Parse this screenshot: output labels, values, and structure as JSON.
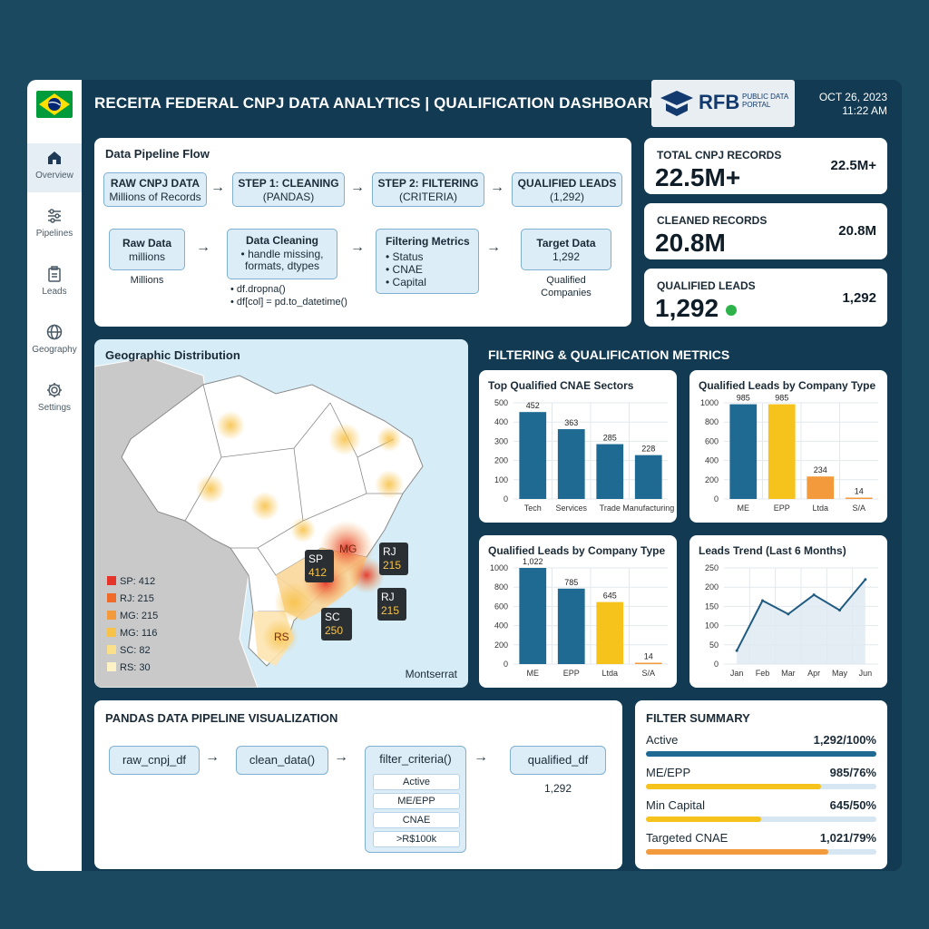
{
  "app": {
    "title": "RECEITA FEDERAL CNPJ DATA ANALYTICS | QUALIFICATION DASHBOARD",
    "logo_text": "RFB",
    "logo_sub": "PUBLIC DATA PORTAL",
    "date": "OCT 26, 2023",
    "time": "11:22 AM"
  },
  "sidebar": {
    "items": [
      {
        "label": "Overview",
        "icon": "home-icon"
      },
      {
        "label": "Pipelines",
        "icon": "sliders-icon"
      },
      {
        "label": "Leads",
        "icon": "clipboard-icon"
      },
      {
        "label": "Geography",
        "icon": "globe-icon"
      },
      {
        "label": "Settings",
        "icon": "gear-icon"
      }
    ]
  },
  "pipeline": {
    "title": "Data Pipeline Flow",
    "row1": [
      {
        "title": "RAW CNPJ DATA",
        "sub": "Millions of Records"
      },
      {
        "title": "STEP 1: CLEANING",
        "sub": "(PANDAS)"
      },
      {
        "title": "STEP 2: FILTERING",
        "sub": "(CRITERIA)"
      },
      {
        "title": "QUALIFIED LEADS",
        "sub": "(1,292)"
      }
    ],
    "raw": {
      "title": "Raw Data",
      "sub": "millions",
      "below": "Millions"
    },
    "cleaning": {
      "title": "Data Cleaning",
      "bullets": [
        "• handle missing,",
        "formats, dtypes"
      ],
      "code1": "• df.dropna()",
      "code2": "• df[col] = pd.to_datetime()"
    },
    "filtering": {
      "title": "Filtering Metrics",
      "bullets": [
        "• Status",
        "• CNAE",
        "• Capital"
      ]
    },
    "target": {
      "title": "Target Data",
      "sub": "1,292",
      "below1": "Qualified",
      "below2": "Companies"
    }
  },
  "stats": [
    {
      "label": "TOTAL CNPJ RECORDS",
      "value": "22.5M+",
      "side": "22.5M+"
    },
    {
      "label": "CLEANED RECORDS",
      "value": "20.8M",
      "side": "20.8M"
    },
    {
      "label": "QUALIFIED LEADS",
      "value": "1,292",
      "side": "1,292"
    }
  ],
  "geo": {
    "title": "Geographic Distribution",
    "legend": [
      {
        "text": "SP: 412",
        "color": "#e5342a"
      },
      {
        "text": "RJ: 215",
        "color": "#f06a2a"
      },
      {
        "text": "MG: 215",
        "color": "#f39a3a"
      },
      {
        "text": "MG: 116",
        "color": "#f7c24a"
      },
      {
        "text": "SC: 82",
        "color": "#fbe08a"
      },
      {
        "text": "RS: 30",
        "color": "#fdf2c6"
      }
    ],
    "markers": [
      {
        "state": "SP",
        "value": "412"
      },
      {
        "state": "RJ",
        "value": "215"
      },
      {
        "state": "RJ",
        "value": "215"
      },
      {
        "state": "SC",
        "value": "250"
      }
    ],
    "state_labels": [
      "MG",
      "RS"
    ],
    "footer": "Montserrat"
  },
  "metrics_label": "FILTERING & QUALIFICATION METRICS",
  "chart_data": [
    {
      "type": "bar",
      "title": "Top Qualified CNAE Sectors",
      "categories": [
        "Tech",
        "Services",
        "Trade",
        "Manufacturing"
      ],
      "values": [
        452,
        363,
        285,
        228
      ],
      "ylim": [
        0,
        500
      ],
      "yticks": [
        0,
        100,
        200,
        300,
        400,
        500
      ],
      "colors": [
        "#1f6a93",
        "#1f6a93",
        "#1f6a93",
        "#1f6a93"
      ]
    },
    {
      "type": "bar",
      "title": "Qualified Leads by Company Type",
      "categories": [
        "ME",
        "EPP",
        "Ltda",
        "S/A"
      ],
      "values": [
        985,
        985,
        234,
        14
      ],
      "ylim": [
        0,
        1000
      ],
      "yticks": [
        0,
        200,
        400,
        600,
        800,
        1000
      ],
      "colors": [
        "#1f6a93",
        "#f6c21c",
        "#f29a3c",
        "#f29a3c"
      ]
    },
    {
      "type": "bar",
      "title": "Qualified Leads by Company Type",
      "categories": [
        "ME",
        "EPP",
        "Ltda",
        "S/A"
      ],
      "values": [
        1022,
        785,
        645,
        14
      ],
      "ylim": [
        0,
        1000
      ],
      "yticks": [
        0,
        200,
        400,
        600,
        800,
        1000
      ],
      "colors": [
        "#1f6a93",
        "#1f6a93",
        "#f6c21c",
        "#f29a3c"
      ]
    },
    {
      "type": "line",
      "title": "Leads Trend (Last 6 Months)",
      "categories": [
        "Jan",
        "Feb",
        "Mar",
        "Apr",
        "May",
        "Jun"
      ],
      "values": [
        35,
        165,
        130,
        180,
        140,
        220
      ],
      "ylim": [
        0,
        250
      ],
      "yticks": [
        0,
        50,
        100,
        150,
        200,
        250
      ],
      "colors": [
        "#1f5a80"
      ]
    }
  ],
  "pandas": {
    "title": "PANDAS DATA PIPELINE VISUALIZATION",
    "nodes": [
      "raw_cnpj_df",
      "clean_data()",
      "filter_criteria()",
      "qualified_df"
    ],
    "filters": [
      "Active",
      "ME/EPP",
      "CNAE",
      ">R$100k"
    ],
    "qualified_count": "1,292"
  },
  "filter_summary": {
    "title": "FILTER SUMMARY",
    "rows": [
      {
        "name": "Active",
        "value": "1,292/100%",
        "pct": 100,
        "color": "#1f6a93"
      },
      {
        "name": "ME/EPP",
        "value": "985/76%",
        "pct": 76,
        "color": "#f6c21c"
      },
      {
        "name": "Min Capital",
        "value": "645/50%",
        "pct": 50,
        "color": "#f6c21c"
      },
      {
        "name": "Targeted CNAE",
        "value": "1,021/79%",
        "pct": 79,
        "color": "#f29a3c"
      }
    ]
  }
}
